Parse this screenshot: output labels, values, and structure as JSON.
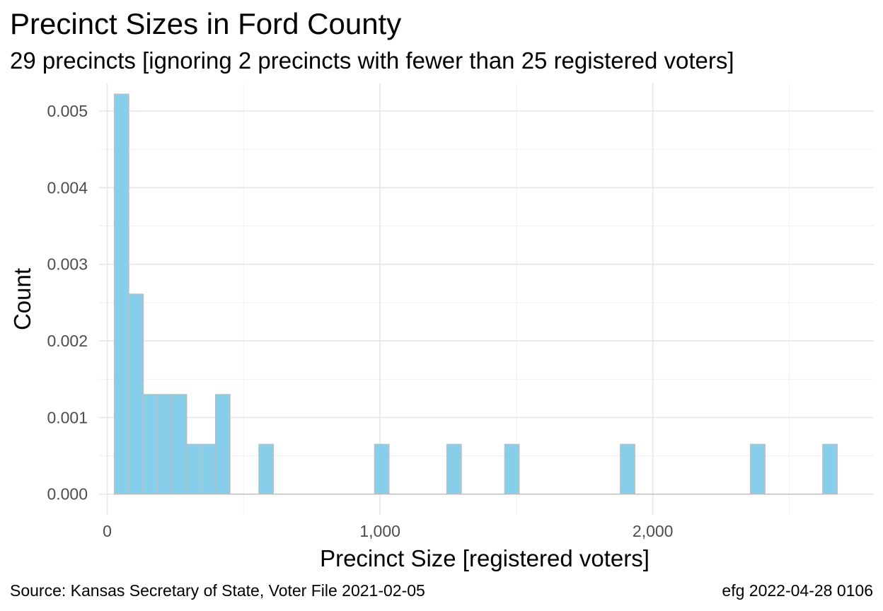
{
  "chart_data": {
    "type": "bar",
    "title": "Precinct Sizes in Ford County",
    "subtitle": "29 precincts [ignoring 2 precincts with fewer than 25 registered voters]",
    "xlabel": "Precinct Size [registered voters]",
    "ylabel": "Count",
    "caption_left": "Source:  Kansas Secretary of State, Voter File  2021-02-05",
    "caption_right": "efg 2022-04-28 0106",
    "xlim": [
      -30,
      2810
    ],
    "ylim": [
      -0.00027,
      0.00536
    ],
    "x_ticks": [
      {
        "value": 0,
        "label": "0"
      },
      {
        "value": 1000,
        "label": "1,000"
      },
      {
        "value": 2000,
        "label": "2,000"
      }
    ],
    "y_ticks": [
      {
        "value": 0.0,
        "label": "0.000"
      },
      {
        "value": 0.001,
        "label": "0.001"
      },
      {
        "value": 0.002,
        "label": "0.002"
      },
      {
        "value": 0.003,
        "label": "0.003"
      },
      {
        "value": 0.004,
        "label": "0.004"
      },
      {
        "value": 0.005,
        "label": "0.005"
      }
    ],
    "grid": true,
    "bar_fill": "#87ceeb",
    "bar_stroke": "#bebebe",
    "bars": [
      {
        "x0": 26,
        "x1": 79,
        "value": 0.00522
      },
      {
        "x0": 79,
        "x1": 132,
        "value": 0.00261
      },
      {
        "x0": 132,
        "x1": 185,
        "value": 0.0013
      },
      {
        "x0": 185,
        "x1": 238,
        "value": 0.0013
      },
      {
        "x0": 238,
        "x1": 291,
        "value": 0.0013
      },
      {
        "x0": 291,
        "x1": 344,
        "value": 0.00065
      },
      {
        "x0": 344,
        "x1": 397,
        "value": 0.00065
      },
      {
        "x0": 397,
        "x1": 450,
        "value": 0.0013
      },
      {
        "x0": 450,
        "x1": 556,
        "value": 0
      },
      {
        "x0": 556,
        "x1": 609,
        "value": 0.00065
      },
      {
        "x0": 609,
        "x1": 980,
        "value": 0
      },
      {
        "x0": 980,
        "x1": 1033,
        "value": 0.00065
      },
      {
        "x0": 1033,
        "x1": 1245,
        "value": 0
      },
      {
        "x0": 1245,
        "x1": 1298,
        "value": 0.00065
      },
      {
        "x0": 1298,
        "x1": 1457,
        "value": 0
      },
      {
        "x0": 1457,
        "x1": 1510,
        "value": 0.00065
      },
      {
        "x0": 1510,
        "x1": 1881,
        "value": 0
      },
      {
        "x0": 1881,
        "x1": 1934,
        "value": 0.00065
      },
      {
        "x0": 1934,
        "x1": 2358,
        "value": 0
      },
      {
        "x0": 2358,
        "x1": 2411,
        "value": 0.00065
      },
      {
        "x0": 2411,
        "x1": 2623,
        "value": 0
      },
      {
        "x0": 2623,
        "x1": 2676,
        "value": 0.00065
      }
    ]
  }
}
